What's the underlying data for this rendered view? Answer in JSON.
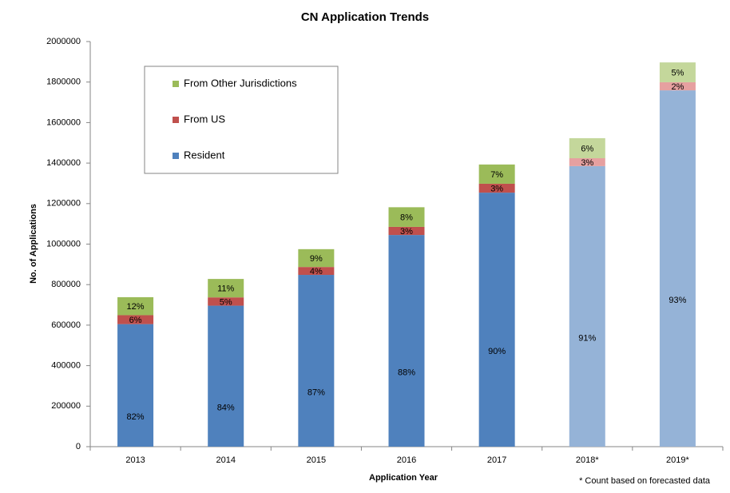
{
  "chart_data": {
    "type": "stacked_bar",
    "title": "CN Application Trends",
    "x_label": "Application Year",
    "y_label": "No. of Applications",
    "footnote": "* Count based on forecasted data",
    "categories": [
      "2013",
      "2014",
      "2015",
      "2016",
      "2017",
      "2018*",
      "2019*"
    ],
    "forecast": [
      false,
      false,
      false,
      false,
      false,
      true,
      true
    ],
    "ylim": [
      0,
      2000000
    ],
    "yticks": [
      0,
      200000,
      400000,
      600000,
      800000,
      1000000,
      1200000,
      1400000,
      1600000,
      1800000,
      2000000
    ],
    "series": [
      {
        "name": "Resident",
        "color": "#4f81bd",
        "forecast_color": "#95b3d7",
        "values": [
          605000,
          696000,
          848000,
          1045000,
          1254000,
          1385000,
          1759000
        ],
        "labels": [
          "82%",
          "84%",
          "87%",
          "88%",
          "90%",
          "91%",
          "93%"
        ]
      },
      {
        "name": "From US",
        "color": "#c0504d",
        "forecast_color": "#e6a0a0",
        "values": [
          44000,
          41000,
          39000,
          40000,
          44000,
          39000,
          40000
        ],
        "labels": [
          "6%",
          "5%",
          "4%",
          "3%",
          "3%",
          "3%",
          "2%"
        ]
      },
      {
        "name": "From Other Jurisdictions",
        "color": "#9bbb59",
        "forecast_color": "#c4d79b",
        "values": [
          89000,
          91000,
          88000,
          97000,
          95000,
          99000,
          98000
        ],
        "labels": [
          "12%",
          "11%",
          "9%",
          "8%",
          "7%",
          "6%",
          "5%"
        ]
      }
    ]
  }
}
